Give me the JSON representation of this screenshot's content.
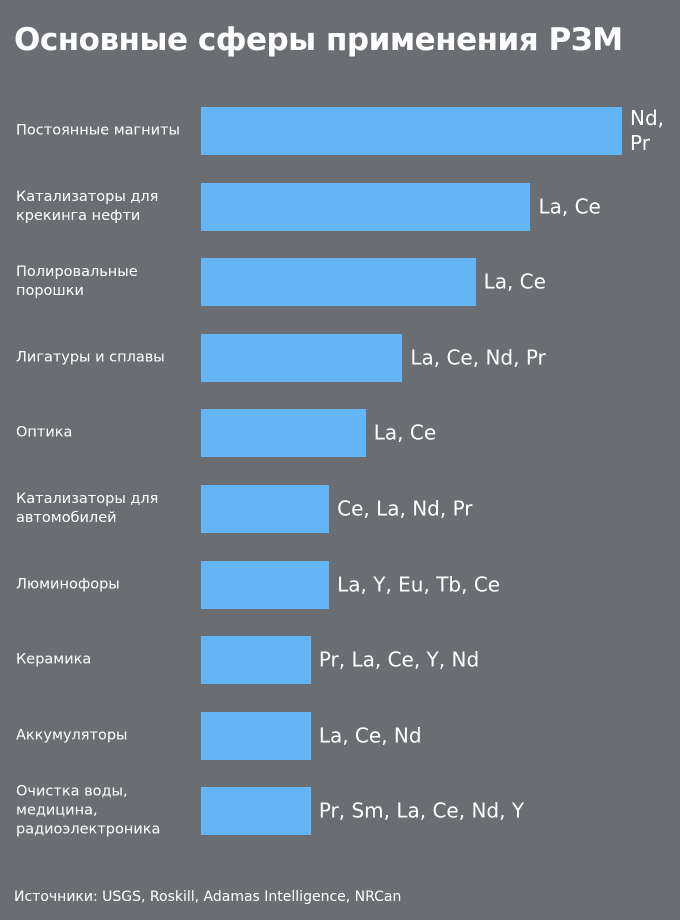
{
  "chart_data": {
    "type": "bar",
    "orientation": "horizontal",
    "title": "Основные сферы применения РЗМ",
    "categories": [
      "Постоянные магниты",
      "Катализаторы для крекинга нефти",
      "Полировальные порошки",
      "Лигатуры и сплавы",
      "Оптика",
      "Катализаторы для автомобилей",
      "Люминофоры",
      "Керамика",
      "Аккумуляторы",
      "Очистка воды, медицина, радиоэлектроника"
    ],
    "values": [
      23,
      18,
      15,
      11,
      9,
      7,
      7,
      6,
      6,
      6
    ],
    "annotations": [
      "Nd, Pr",
      "La, Ce",
      "La, Ce",
      "La, Ce, Nd, Pr",
      "La, Ce",
      "Ce, La, Nd, Pr",
      "La, Y, Eu, Tb, Ce",
      "Pr, La, Ce, Y, Nd",
      "La, Ce, Nd",
      "Pr, Sm, La, Ce, Nd, Y"
    ],
    "color": "#64b5f6",
    "source": "Источники: USGS, Roskill, Adamas Intelligence, NRCan"
  }
}
